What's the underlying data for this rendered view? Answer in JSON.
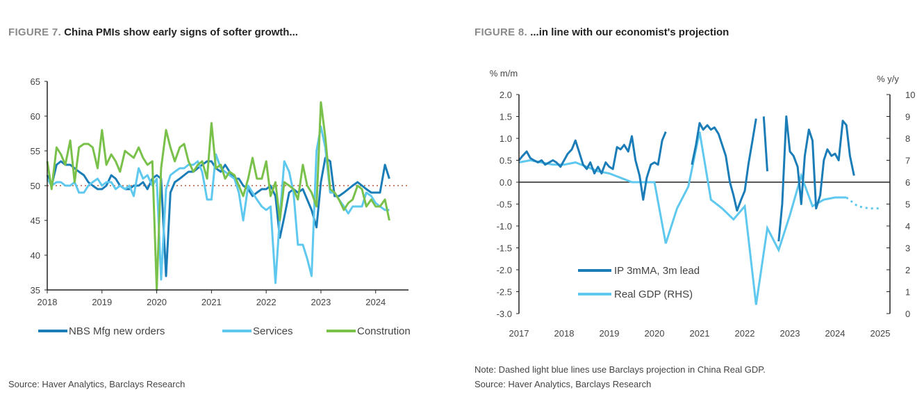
{
  "figure7": {
    "label": "FIGURE 7.",
    "title": "China PMIs show early signs of softer growth...",
    "source": "Source: Haver Analytics, Barclays Research"
  },
  "figure8": {
    "label": "FIGURE 8.",
    "title": "...in line with our economist's projection",
    "note": "Note: Dashed light blue lines use Barclays projection in China Real GDP.",
    "source": "Source: Haver Analytics, Barclays Research"
  },
  "colors": {
    "dark_blue": "#1b7db8",
    "light_blue": "#5fc8ee",
    "green": "#79c14a",
    "ref_line": "#c9846f",
    "axis": "#222222"
  },
  "chart_data": [
    {
      "type": "line",
      "x_ticks": [
        "2018",
        "2019",
        "2020",
        "2021",
        "2022",
        "2023",
        "2024"
      ],
      "xlim": [
        2018,
        2024.6
      ],
      "ylim": [
        35,
        65
      ],
      "y_ticks": [
        35,
        40,
        45,
        50,
        55,
        60,
        65
      ],
      "reference_line": 50,
      "legend_position": "bottom",
      "series": [
        {
          "name": "NBS Mfg new orders",
          "color": "#1b7db8",
          "x": [
            2018.0,
            2018.08,
            2018.17,
            2018.25,
            2018.33,
            2018.42,
            2018.5,
            2018.58,
            2018.67,
            2018.75,
            2018.83,
            2018.92,
            2019.0,
            2019.08,
            2019.17,
            2019.25,
            2019.33,
            2019.42,
            2019.5,
            2019.58,
            2019.67,
            2019.75,
            2019.83,
            2019.92,
            2020.0,
            2020.08,
            2020.17,
            2020.25,
            2020.33,
            2020.42,
            2020.5,
            2020.58,
            2020.67,
            2020.75,
            2020.83,
            2020.92,
            2021.0,
            2021.08,
            2021.17,
            2021.25,
            2021.33,
            2021.42,
            2021.5,
            2021.58,
            2021.67,
            2021.75,
            2021.83,
            2021.92,
            2022.0,
            2022.08,
            2022.17,
            2022.25,
            2022.33,
            2022.42,
            2022.5,
            2022.58,
            2022.67,
            2022.75,
            2022.83,
            2022.92,
            2023.0,
            2023.08,
            2023.17,
            2023.25,
            2023.33,
            2023.42,
            2023.5,
            2023.58,
            2023.67,
            2023.75,
            2023.83,
            2023.92,
            2024.0,
            2024.08,
            2024.17,
            2024.25
          ],
          "y": [
            51.5,
            50.0,
            53.0,
            53.5,
            53.0,
            53.0,
            52.5,
            52.0,
            51.5,
            50.5,
            50.0,
            49.5,
            49.5,
            50.0,
            51.5,
            51.0,
            50.0,
            49.5,
            49.5,
            50.0,
            50.0,
            50.5,
            49.5,
            51.0,
            51.5,
            51.0,
            37.0,
            49.0,
            50.5,
            51.0,
            51.5,
            52.0,
            52.0,
            52.5,
            53.0,
            53.5,
            53.5,
            52.5,
            52.0,
            53.0,
            52.0,
            51.0,
            51.0,
            50.0,
            49.5,
            48.5,
            49.0,
            49.5,
            49.5,
            50.0,
            48.5,
            42.5,
            45.5,
            49.0,
            49.5,
            49.0,
            49.5,
            48.0,
            46.5,
            44.0,
            50.5,
            54.0,
            53.5,
            48.5,
            48.5,
            49.0,
            49.5,
            50.0,
            50.5,
            50.0,
            49.5,
            49.0,
            49.0,
            49.0,
            53.0,
            51.0
          ]
        },
        {
          "name": "Services",
          "color": "#5fc8ee",
          "x": [
            2018.0,
            2018.08,
            2018.17,
            2018.25,
            2018.33,
            2018.42,
            2018.5,
            2018.58,
            2018.67,
            2018.75,
            2018.83,
            2018.92,
            2019.0,
            2019.08,
            2019.17,
            2019.25,
            2019.33,
            2019.42,
            2019.5,
            2019.58,
            2019.67,
            2019.75,
            2019.83,
            2019.92,
            2020.0,
            2020.08,
            2020.17,
            2020.25,
            2020.33,
            2020.42,
            2020.5,
            2020.58,
            2020.67,
            2020.75,
            2020.83,
            2020.92,
            2021.0,
            2021.08,
            2021.17,
            2021.25,
            2021.33,
            2021.42,
            2021.5,
            2021.58,
            2021.67,
            2021.75,
            2021.83,
            2021.92,
            2022.0,
            2022.08,
            2022.17,
            2022.25,
            2022.33,
            2022.42,
            2022.5,
            2022.58,
            2022.67,
            2022.75,
            2022.83,
            2022.92,
            2023.0,
            2023.08,
            2023.17,
            2023.25,
            2023.33,
            2023.42,
            2023.5,
            2023.58,
            2023.67,
            2023.75,
            2023.83,
            2023.92,
            2024.0,
            2024.08,
            2024.17,
            2024.25
          ],
          "y": [
            51.0,
            50.0,
            50.5,
            50.5,
            50.0,
            50.0,
            50.5,
            49.0,
            49.0,
            50.0,
            50.5,
            51.0,
            50.0,
            50.5,
            50.5,
            49.5,
            50.0,
            49.5,
            50.0,
            48.5,
            52.5,
            51.0,
            51.5,
            50.0,
            51.0,
            36.5,
            49.5,
            51.5,
            52.0,
            52.5,
            52.5,
            53.0,
            53.0,
            53.5,
            52.0,
            48.0,
            48.0,
            54.5,
            52.5,
            52.0,
            51.5,
            51.0,
            49.0,
            45.0,
            50.0,
            49.0,
            48.0,
            47.0,
            46.5,
            47.0,
            36.0,
            45.5,
            53.5,
            52.0,
            49.0,
            41.5,
            41.5,
            39.5,
            37.0,
            55.0,
            58.5,
            55.5,
            49.0,
            49.0,
            48.0,
            47.0,
            46.0,
            47.0,
            47.0,
            47.0,
            49.0,
            48.5,
            47.5,
            47.0,
            46.5,
            46.5
          ]
        },
        {
          "name": "Constrution",
          "color": "#79c14a",
          "x": [
            2018.0,
            2018.08,
            2018.17,
            2018.25,
            2018.33,
            2018.42,
            2018.5,
            2018.58,
            2018.67,
            2018.75,
            2018.83,
            2018.92,
            2019.0,
            2019.08,
            2019.17,
            2019.25,
            2019.33,
            2019.42,
            2019.5,
            2019.58,
            2019.67,
            2019.75,
            2019.83,
            2019.92,
            2020.0,
            2020.08,
            2020.17,
            2020.25,
            2020.33,
            2020.42,
            2020.5,
            2020.58,
            2020.67,
            2020.75,
            2020.83,
            2020.92,
            2021.0,
            2021.08,
            2021.17,
            2021.25,
            2021.33,
            2021.42,
            2021.5,
            2021.58,
            2021.67,
            2021.75,
            2021.83,
            2021.92,
            2022.0,
            2022.08,
            2022.17,
            2022.25,
            2022.33,
            2022.42,
            2022.5,
            2022.58,
            2022.67,
            2022.75,
            2022.83,
            2022.92,
            2023.0,
            2023.08,
            2023.17,
            2023.25,
            2023.33,
            2023.42,
            2023.5,
            2023.58,
            2023.67,
            2023.75,
            2023.83,
            2023.92,
            2024.0,
            2024.08,
            2024.17,
            2024.25
          ],
          "y": [
            53.5,
            49.5,
            55.5,
            54.5,
            53.0,
            56.5,
            50.5,
            55.5,
            56.0,
            56.0,
            55.5,
            52.5,
            58.0,
            53.0,
            54.5,
            53.5,
            52.0,
            55.0,
            54.5,
            54.0,
            55.5,
            54.0,
            53.0,
            53.5,
            35.0,
            52.5,
            58.0,
            55.5,
            53.5,
            55.5,
            56.0,
            53.5,
            52.0,
            53.0,
            53.5,
            51.0,
            59.0,
            52.5,
            53.0,
            51.0,
            52.0,
            51.5,
            50.0,
            48.5,
            51.0,
            54.0,
            51.0,
            51.0,
            53.5,
            48.5,
            50.5,
            45.0,
            50.5,
            50.0,
            49.5,
            48.0,
            53.0,
            50.0,
            49.0,
            47.0,
            62.0,
            57.0,
            49.5,
            49.0,
            48.0,
            46.5,
            47.5,
            48.0,
            50.0,
            49.5,
            47.0,
            48.0,
            47.0,
            47.0,
            48.0,
            45.0
          ]
        }
      ]
    },
    {
      "type": "line",
      "x_ticks": [
        "2017",
        "2018",
        "2019",
        "2020",
        "2021",
        "2022",
        "2023",
        "2024",
        "2025"
      ],
      "xlim": [
        2017,
        2025
      ],
      "ylim": [
        -3.0,
        2.0
      ],
      "y_ticks": [
        -3.0,
        -2.5,
        -2.0,
        -1.5,
        -1.0,
        -0.5,
        0.0,
        0.5,
        1.0,
        1.5,
        2.0
      ],
      "ylabel": "% m/m",
      "y2label": "% y/y",
      "y2lim": [
        0,
        10
      ],
      "y2_ticks": [
        0,
        1,
        2,
        3,
        4,
        5,
        6,
        7,
        8,
        9,
        10
      ],
      "legend_position": "bottom-left",
      "series": [
        {
          "name": "IP 3mMA, 3m lead",
          "color": "#1b7db8",
          "axis": "left",
          "segments": [
            {
              "x": [
                2017.0,
                2017.08,
                2017.17,
                2017.25,
                2017.33,
                2017.42,
                2017.5,
                2017.58,
                2017.67,
                2017.75,
                2017.83,
                2017.92,
                2018.0,
                2018.08,
                2018.17,
                2018.25,
                2018.33,
                2018.42,
                2018.5,
                2018.58,
                2018.67,
                2018.75,
                2018.83,
                2018.92,
                2019.0,
                2019.08,
                2019.17,
                2019.25,
                2019.33,
                2019.42,
                2019.5,
                2019.58,
                2019.67,
                2019.75,
                2019.83,
                2019.92,
                2020.0,
                2020.08,
                2020.17,
                2020.25
              ],
              "y": [
                0.5,
                0.6,
                0.7,
                0.55,
                0.5,
                0.45,
                0.5,
                0.4,
                0.45,
                0.5,
                0.45,
                0.35,
                0.5,
                0.65,
                0.75,
                0.95,
                0.7,
                0.4,
                0.3,
                0.45,
                0.2,
                0.35,
                0.2,
                0.45,
                0.35,
                0.3,
                0.8,
                0.75,
                0.85,
                0.7,
                1.05,
                0.5,
                0.15,
                -0.4,
                0.1,
                0.4,
                0.45,
                0.4,
                0.95,
                1.15
              ]
            },
            {
              "x": [
                2020.83,
                2020.92,
                2021.0,
                2021.08,
                2021.17,
                2021.25,
                2021.33,
                2021.42,
                2021.5,
                2021.58,
                2021.67,
                2021.75,
                2021.83,
                2021.92,
                2022.0,
                2022.08,
                2022.17,
                2022.25
              ],
              "y": [
                0.4,
                0.85,
                1.35,
                1.2,
                1.3,
                1.2,
                1.25,
                1.1,
                0.85,
                0.6,
                0.0,
                -0.3,
                -0.65,
                -0.4,
                -0.2,
                0.4,
                0.95,
                1.45
              ]
            },
            {
              "x": [
                2022.42,
                2022.5
              ],
              "y": [
                1.5,
                0.25
              ]
            },
            {
              "x": [
                2022.75,
                2022.83,
                2022.92,
                2023.0,
                2023.08,
                2023.17,
                2023.25,
                2023.33,
                2023.42,
                2023.5,
                2023.58,
                2023.67,
                2023.75,
                2023.83,
                2023.92,
                2024.0,
                2024.08,
                2024.17,
                2024.25,
                2024.33,
                2024.42
              ],
              "y": [
                -1.35,
                -0.5,
                1.5,
                0.7,
                0.6,
                0.35,
                -0.5,
                0.6,
                1.2,
                0.95,
                -0.6,
                -0.3,
                0.5,
                0.75,
                0.6,
                0.65,
                0.5,
                1.4,
                1.3,
                0.6,
                0.15
              ]
            }
          ]
        },
        {
          "name": "Real GDP (RHS)",
          "color": "#5fc8ee",
          "axis": "right",
          "x": [
            2017.0,
            2017.25,
            2017.5,
            2017.75,
            2018.0,
            2018.25,
            2018.5,
            2018.75,
            2019.0,
            2019.25,
            2019.5,
            2019.75,
            2020.0,
            2020.25,
            2020.5,
            2020.75,
            2021.0,
            2021.25,
            2021.5,
            2021.75,
            2022.0,
            2022.25,
            2022.5,
            2022.75,
            2023.0,
            2023.25,
            2023.5,
            2023.75,
            2024.0,
            2024.25
          ],
          "y": [
            6.9,
            7.0,
            6.9,
            6.8,
            6.8,
            6.9,
            6.7,
            6.5,
            6.4,
            6.2,
            6.0,
            6.0,
            6.0,
            3.2,
            4.8,
            5.8,
            8.3,
            5.2,
            4.8,
            4.3,
            4.9,
            0.4,
            3.9,
            2.9,
            4.5,
            6.3,
            4.9,
            5.2,
            5.3,
            5.3
          ],
          "projection": {
            "x": [
              2024.25,
              2024.5,
              2024.75,
              2025.0
            ],
            "y": [
              5.3,
              4.9,
              4.8,
              4.8
            ]
          }
        }
      ]
    }
  ]
}
